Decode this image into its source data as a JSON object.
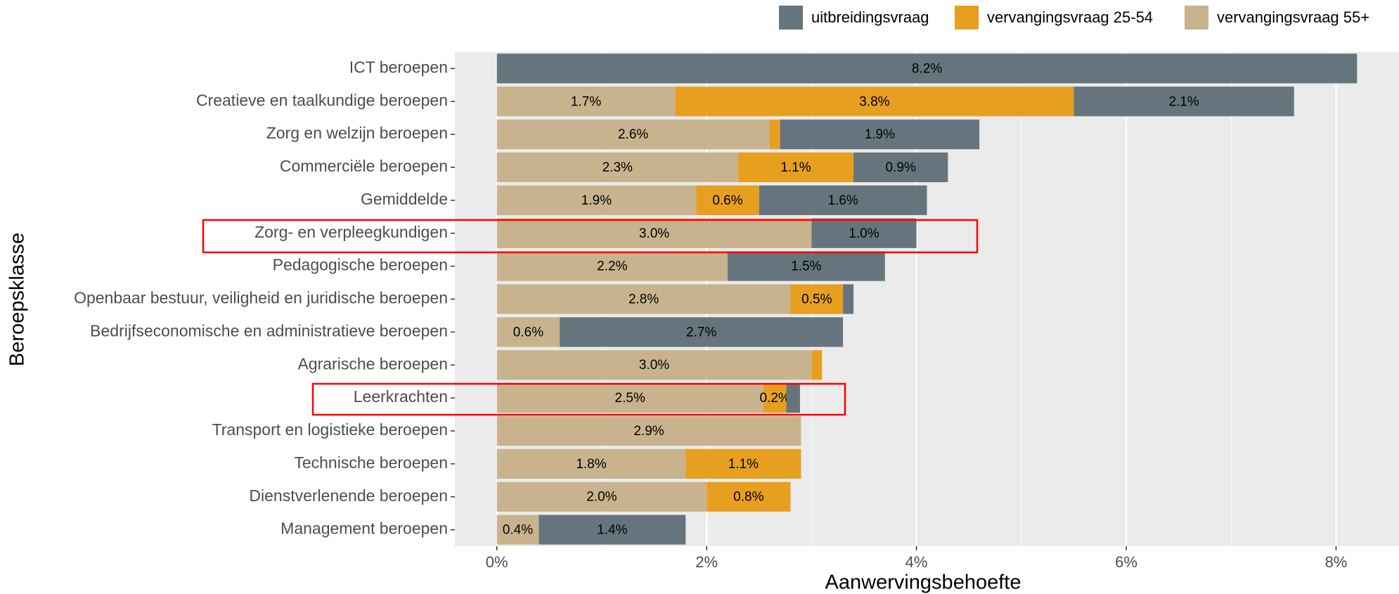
{
  "chart_data": {
    "type": "stacked_barh",
    "xlabel": "Aanwervingsbehoefte",
    "ylabel": "Beroepsklasse",
    "categories": [
      "ICT beroepen",
      "Creatieve en taalkundige beroepen",
      "Zorg en welzijn beroepen",
      "Commerciële beroepen",
      "Gemiddelde",
      "Zorg- en verpleegkundigen",
      "Pedagogische beroepen",
      "Openbaar bestuur, veiligheid en juridische beroepen",
      "Bedrijfseconomische en administratieve beroepen",
      "Agrarische beroepen",
      "Leerkrachten",
      "Transport en logistieke beroepen",
      "Technische beroepen",
      "Dienstverlenende beroepen",
      "Management beroepen"
    ],
    "series": [
      {
        "name": "uitbreidingsvraag",
        "color": "#66757d",
        "values": [
          8.2,
          2.1,
          1.9,
          0.9,
          1.6,
          1.0,
          1.5,
          0.1,
          2.7,
          0,
          0.13,
          0,
          0,
          0,
          1.4
        ],
        "value_labels": [
          "8.2%",
          "2.1%",
          "1.9%",
          "0.9%",
          "1.6%",
          "1.0%",
          "1.5%",
          null,
          "2.7%",
          null,
          null,
          null,
          null,
          null,
          "1.4%"
        ]
      },
      {
        "name": "vervangingsvraag 25-54",
        "color": "#e69f1f",
        "values": [
          0,
          3.8,
          0.1,
          1.1,
          0.6,
          0,
          0,
          0.5,
          0,
          0.1,
          0.22,
          0,
          1.1,
          0.8,
          0
        ],
        "value_labels": [
          null,
          "3.8%",
          null,
          "1.1%",
          "0.6%",
          null,
          null,
          "0.5%",
          null,
          null,
          "0.2%",
          null,
          "1.1%",
          "0.8%",
          null
        ]
      },
      {
        "name": "vervangingsvraag 55+",
        "color": "#c8b38e",
        "values": [
          0,
          1.7,
          2.6,
          2.3,
          1.9,
          3.0,
          2.2,
          2.8,
          0.6,
          3.0,
          2.54,
          2.9,
          1.8,
          2.0,
          0.4
        ],
        "value_labels": [
          null,
          "1.7%",
          "2.6%",
          "2.3%",
          "1.9%",
          "3.0%",
          "2.2%",
          "2.8%",
          "0.6%",
          "3.0%",
          "2.5%",
          "2.9%",
          "1.8%",
          "2.0%",
          "0.4%"
        ]
      }
    ],
    "xlim": [
      -0.4,
      8.6
    ],
    "xticks": [
      {
        "value": 0,
        "label": "0%"
      },
      {
        "value": 2,
        "label": "2%"
      },
      {
        "value": 4,
        "label": "4%"
      },
      {
        "value": 6,
        "label": "6%"
      },
      {
        "value": 8,
        "label": "8%"
      }
    ],
    "grid": true,
    "legend": "top"
  }
}
